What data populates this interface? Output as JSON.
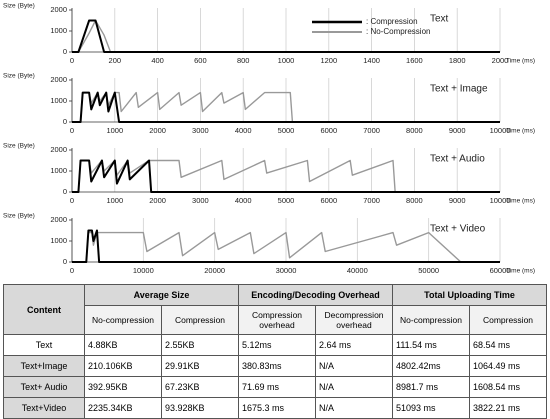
{
  "chart_data": [
    {
      "type": "line",
      "annotation": "Text",
      "y_label": "Size (Byte)",
      "x_label": "Time (ms)",
      "x": [
        0,
        30,
        80,
        110,
        150,
        180,
        200,
        2000
      ],
      "series": [
        {
          "name": ": Compression",
          "color": "#000000",
          "values": [
            0,
            0,
            1500,
            1500,
            0,
            0,
            0,
            0
          ]
        },
        {
          "name": ": No-Compression",
          "color": "#999999",
          "values": [
            0,
            0,
            900,
            1500,
            800,
            0,
            0,
            0
          ]
        }
      ],
      "xlim": [
        0,
        2000
      ],
      "xticks": [
        0,
        200,
        400,
        600,
        800,
        1000,
        1200,
        1400,
        1600,
        1800,
        2000
      ],
      "ylim": [
        0,
        2000
      ],
      "yticks": [
        0,
        1000,
        2000
      ],
      "grid": true
    },
    {
      "type": "line",
      "annotation": "Text + Image",
      "y_label": "Size (Byte)",
      "x_label": "Time (ms)",
      "x": [
        0,
        200,
        250,
        400,
        450,
        600,
        650,
        800,
        850,
        1000,
        1100,
        1150,
        1500,
        1550,
        2000,
        2050,
        2500,
        2550,
        3000,
        3050,
        3500,
        3550,
        4000,
        4050,
        4500,
        4550,
        5100,
        5150,
        10000
      ],
      "series": [
        {
          "color": "#000000",
          "values": [
            0,
            0,
            1400,
            1400,
            600,
            1400,
            800,
            1400,
            500,
            1400,
            0,
            0,
            0,
            0,
            0,
            0,
            0,
            0,
            0,
            0,
            0,
            0,
            0,
            0,
            0,
            0,
            0,
            0,
            0
          ]
        },
        {
          "color": "#999999",
          "values": [
            0,
            0,
            1400,
            1400,
            900,
            1400,
            1000,
            1400,
            800,
            1400,
            1400,
            500,
            1400,
            700,
            1400,
            600,
            1400,
            800,
            1400,
            500,
            1400,
            900,
            1400,
            600,
            1400,
            1400,
            1400,
            0,
            0
          ]
        }
      ],
      "xlim": [
        0,
        10000
      ],
      "xticks": [
        0,
        1000,
        2000,
        3000,
        4000,
        5000,
        6000,
        7000,
        8000,
        9000,
        10000
      ],
      "ylim": [
        0,
        2000
      ],
      "yticks": [
        0,
        1000,
        2000
      ],
      "grid": true
    },
    {
      "type": "line",
      "annotation": "Text + Audio",
      "y_label": "Size (Byte)",
      "x_label": "Time (ms)",
      "x": [
        0,
        150,
        200,
        400,
        450,
        700,
        750,
        1000,
        1050,
        1300,
        1350,
        1800,
        1850,
        2500,
        2550,
        3500,
        3550,
        4500,
        4550,
        5500,
        5550,
        6500,
        6550,
        7500,
        7550,
        8000,
        10000
      ],
      "series": [
        {
          "color": "#000000",
          "values": [
            0,
            0,
            1500,
            1500,
            500,
            1500,
            700,
            1500,
            400,
            1500,
            600,
            1500,
            0,
            0,
            0,
            0,
            0,
            0,
            0,
            0,
            0,
            0,
            0,
            0,
            0,
            0,
            0
          ]
        },
        {
          "color": "#999999",
          "values": [
            0,
            0,
            1500,
            1500,
            900,
            1500,
            1000,
            1500,
            800,
            1500,
            900,
            1500,
            1500,
            1500,
            700,
            1500,
            600,
            1500,
            900,
            1500,
            500,
            1500,
            800,
            1500,
            0,
            0,
            0
          ]
        }
      ],
      "xlim": [
        0,
        10000
      ],
      "xticks": [
        0,
        1000,
        2000,
        3000,
        4000,
        5000,
        6000,
        7000,
        8000,
        9000,
        10000
      ],
      "ylim": [
        0,
        2000
      ],
      "yticks": [
        0,
        1000,
        2000
      ],
      "grid": true
    },
    {
      "type": "line",
      "annotation": "Text + Video",
      "y_label": "Size (Byte)",
      "x_label": "Time (ms)",
      "x": [
        0,
        2000,
        2300,
        2800,
        3000,
        3500,
        3800,
        4000,
        10000,
        10500,
        15000,
        15500,
        20000,
        20500,
        25000,
        25500,
        30000,
        30500,
        35000,
        35500,
        45000,
        45500,
        50000,
        54500,
        60000
      ],
      "series": [
        {
          "color": "#000000",
          "values": [
            0,
            0,
            1500,
            1500,
            1000,
            1500,
            0,
            0,
            0,
            0,
            0,
            0,
            0,
            0,
            0,
            0,
            0,
            0,
            0,
            0,
            0,
            0,
            0,
            0,
            0
          ]
        },
        {
          "color": "#999999",
          "values": [
            0,
            0,
            1400,
            1400,
            800,
            1400,
            1400,
            1400,
            1400,
            500,
            1400,
            300,
            1400,
            600,
            1400,
            400,
            1400,
            200,
            1400,
            500,
            1400,
            800,
            1400,
            0,
            0
          ]
        }
      ],
      "xlim": [
        0,
        60000
      ],
      "xticks": [
        0,
        10000,
        20000,
        30000,
        40000,
        50000,
        60000
      ],
      "ylim": [
        0,
        2000
      ],
      "yticks": [
        0,
        1000,
        2000
      ],
      "grid": true
    }
  ],
  "table": {
    "header": [
      "Content",
      "Average Size",
      "Encoding/Decoding Overhead",
      "Total Uploading Time"
    ],
    "subheader": [
      "No-compression",
      "Compression",
      "Compression overhead",
      "Decompression overhead",
      "No-compression",
      "Compression"
    ],
    "rows": [
      [
        "Text",
        "4.88KB",
        "2.55KB",
        "5.12ms",
        "2.64 ms",
        "111.54 ms",
        "68.54 ms"
      ],
      [
        "Text+Image",
        "210.106KB",
        "29.91KB",
        "380.83ms",
        "N/A",
        "4802.42ms",
        "1064.49 ms"
      ],
      [
        "Text+ Audio",
        "392.95KB",
        "67.23KB",
        "71.69 ms",
        "N/A",
        "8981.7 ms",
        "1608.54 ms"
      ],
      [
        "Text+Video",
        "2235.34KB",
        "93.928KB",
        "1675.3 ms",
        "N/A",
        "51093 ms",
        "3822.21 ms"
      ]
    ]
  }
}
